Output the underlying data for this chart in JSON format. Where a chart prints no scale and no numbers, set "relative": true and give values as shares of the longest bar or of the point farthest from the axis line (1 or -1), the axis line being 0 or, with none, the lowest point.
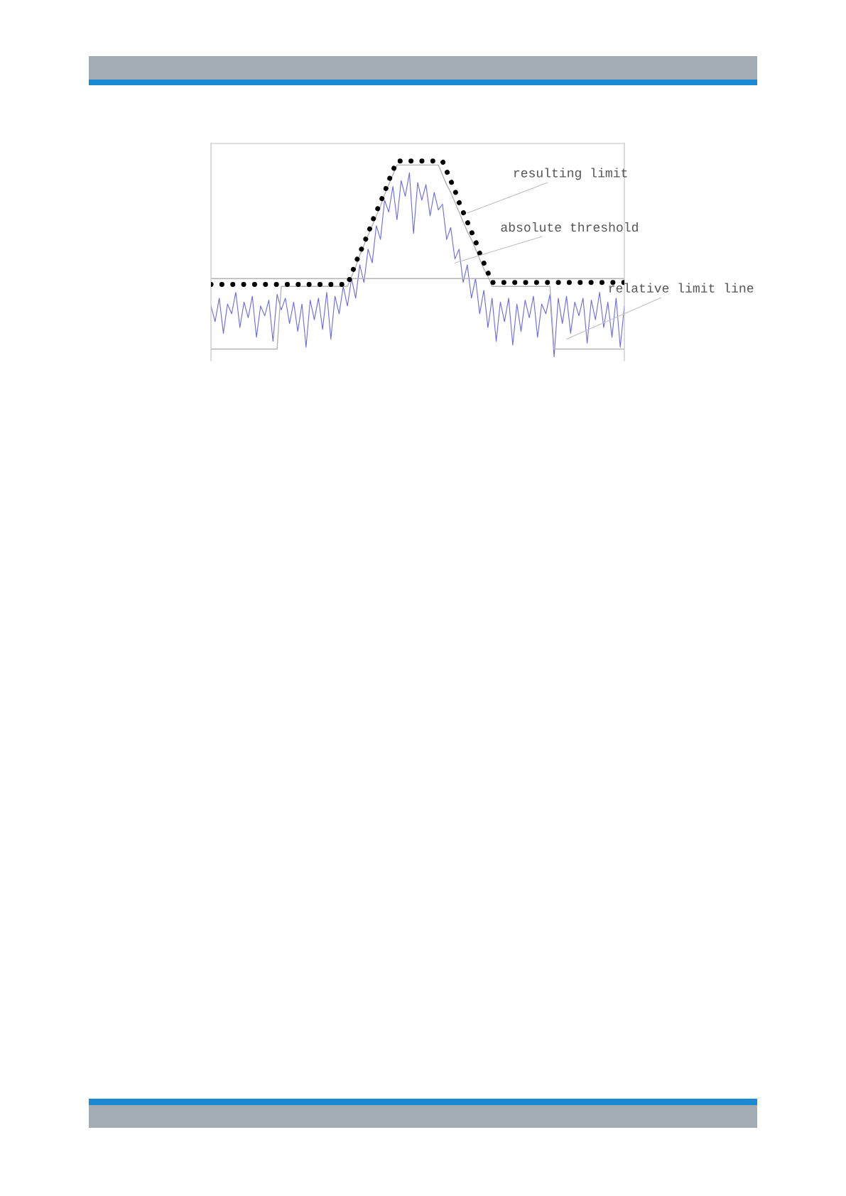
{
  "chart_data": {
    "type": "line",
    "relative": true,
    "categories": [
      null,
      null,
      null,
      null,
      null,
      null,
      null,
      null,
      null,
      null,
      null,
      null,
      null,
      null,
      null,
      null,
      null,
      null,
      null,
      null,
      null,
      null,
      null,
      null,
      null,
      null,
      null,
      null,
      null,
      null,
      null,
      null,
      null,
      null,
      null,
      null,
      null,
      null,
      null,
      null,
      null,
      null,
      null,
      null,
      null,
      null,
      null,
      null,
      null,
      null,
      null,
      null,
      null,
      null,
      null,
      null,
      null,
      null,
      null,
      null,
      null,
      null,
      null,
      null,
      null,
      null,
      null,
      null,
      null,
      null,
      null,
      null,
      null,
      null,
      null,
      null,
      null,
      null,
      null,
      null,
      null,
      null,
      null,
      null,
      null,
      null,
      null,
      null,
      null,
      null,
      null,
      null,
      null,
      null,
      null,
      null,
      null,
      null,
      null,
      null,
      null
    ],
    "series": [
      {
        "color": "#6a6ae8",
        "line_style": "solid",
        "values": [
          0.26,
          0.18,
          0.3,
          0.12,
          0.27,
          0.22,
          0.33,
          0.15,
          0.28,
          0.2,
          0.31,
          0.1,
          0.26,
          0.21,
          0.29,
          0.08,
          0.32,
          0.24,
          0.3,
          0.17,
          0.28,
          0.13,
          0.27,
          0.05,
          0.29,
          0.19,
          0.3,
          0.14,
          0.33,
          0.09,
          0.31,
          0.22,
          0.36,
          0.26,
          0.4,
          0.3,
          0.47,
          0.38,
          0.55,
          0.48,
          0.67,
          0.6,
          0.8,
          0.74,
          0.87,
          0.7,
          0.9,
          0.82,
          0.94,
          0.63,
          0.89,
          0.8,
          0.88,
          0.72,
          0.84,
          0.75,
          0.78,
          0.6,
          0.66,
          0.5,
          0.55,
          0.38,
          0.47,
          0.3,
          0.4,
          0.22,
          0.34,
          0.15,
          0.3,
          0.08,
          0.28,
          0.18,
          0.3,
          0.06,
          0.27,
          0.13,
          0.29,
          0.2,
          0.31,
          0.1,
          0.27,
          0.22,
          0.32,
          0.0,
          0.3,
          0.17,
          0.31,
          0.12,
          0.28,
          0.21,
          0.3,
          0.07,
          0.29,
          0.19,
          0.33,
          0.15,
          0.28,
          0.1,
          0.3,
          0.05,
          0.26
        ]
      },
      {
        "color": "#b4b4b4",
        "line_style": "solid",
        "values": [
          0.4,
          0.4,
          0.4,
          0.4,
          0.4,
          0.4,
          0.4,
          0.4,
          0.4,
          0.4,
          0.4,
          0.4,
          0.4,
          0.4,
          0.4,
          0.4,
          0.4,
          0.4,
          0.4,
          0.4,
          0.4,
          0.4,
          0.4,
          0.4,
          0.4,
          0.4,
          0.4,
          0.4,
          0.4,
          0.4,
          0.4,
          0.4,
          0.4,
          0.4,
          0.4,
          0.4,
          0.4,
          0.4,
          0.4,
          0.4,
          0.4,
          0.4,
          0.4,
          0.4,
          0.4,
          0.4,
          0.4,
          0.4,
          0.4,
          0.4,
          0.4,
          0.4,
          0.4,
          0.4,
          0.4,
          0.4,
          0.4,
          0.4,
          0.4,
          0.4,
          0.4,
          0.4,
          0.4,
          0.4,
          0.4,
          0.4,
          0.4,
          0.4,
          0.4,
          0.4,
          0.4,
          0.4,
          0.4,
          0.4,
          0.4,
          0.4,
          0.4,
          0.4,
          0.4,
          0.4,
          0.4,
          0.4,
          0.4,
          0.4,
          0.4,
          0.4,
          0.4,
          0.4,
          0.4,
          0.4,
          0.4,
          0.4,
          0.4,
          0.4,
          0.4,
          0.4,
          0.4,
          0.4,
          0.4,
          0.4,
          0.4
        ]
      },
      {
        "color": "#b4b4b4",
        "line_style": "solid",
        "values": [
          0.04,
          0.04,
          0.04,
          0.04,
          0.04,
          0.04,
          0.04,
          0.04,
          0.04,
          0.04,
          0.04,
          0.04,
          0.04,
          0.04,
          0.04,
          0.04,
          0.04,
          0.36,
          0.36,
          0.36,
          0.36,
          0.36,
          0.36,
          0.36,
          0.36,
          0.36,
          0.36,
          0.36,
          0.36,
          0.36,
          0.36,
          0.36,
          0.36,
          0.36,
          0.41,
          0.46,
          0.52,
          0.57,
          0.62,
          0.67,
          0.72,
          0.77,
          0.83,
          0.88,
          0.93,
          0.98,
          0.98,
          0.98,
          0.98,
          0.98,
          0.98,
          0.98,
          0.98,
          0.98,
          0.98,
          0.98,
          0.93,
          0.88,
          0.84,
          0.79,
          0.74,
          0.69,
          0.64,
          0.6,
          0.55,
          0.5,
          0.45,
          0.41,
          0.36,
          0.36,
          0.36,
          0.36,
          0.36,
          0.36,
          0.36,
          0.36,
          0.36,
          0.36,
          0.36,
          0.36,
          0.36,
          0.36,
          0.36,
          0.04,
          0.04,
          0.04,
          0.04,
          0.04,
          0.04,
          0.04,
          0.04,
          0.04,
          0.04,
          0.04,
          0.04,
          0.04,
          0.04,
          0.04,
          0.04,
          0.04,
          0.04
        ]
      },
      {
        "color": "#000000",
        "line_style": "dotted",
        "values": [
          0.37,
          0.37,
          0.37,
          0.37,
          0.37,
          0.37,
          0.37,
          0.37,
          0.37,
          0.37,
          0.37,
          0.37,
          0.37,
          0.37,
          0.37,
          0.37,
          0.37,
          0.37,
          0.37,
          0.37,
          0.37,
          0.37,
          0.37,
          0.37,
          0.37,
          0.37,
          0.37,
          0.37,
          0.37,
          0.37,
          0.37,
          0.37,
          0.37,
          0.37,
          0.42,
          0.48,
          0.53,
          0.58,
          0.63,
          0.69,
          0.74,
          0.79,
          0.84,
          0.9,
          0.95,
          1.0,
          1.0,
          1.0,
          1.0,
          1.0,
          1.0,
          1.0,
          1.0,
          1.0,
          1.0,
          1.0,
          1.0,
          0.95,
          0.9,
          0.85,
          0.79,
          0.74,
          0.69,
          0.64,
          0.59,
          0.53,
          0.48,
          0.43,
          0.38,
          0.38,
          0.38,
          0.38,
          0.38,
          0.38,
          0.38,
          0.38,
          0.38,
          0.38,
          0.38,
          0.38,
          0.38,
          0.38,
          0.38,
          0.38,
          0.38,
          0.38,
          0.38,
          0.38,
          0.38,
          0.38,
          0.38,
          0.38,
          0.38,
          0.38,
          0.38,
          0.38,
          0.38,
          0.38,
          0.38,
          0.38,
          0.38
        ]
      }
    ],
    "annotations": [
      "resulting limit",
      "absolute threshold",
      "relative limit line"
    ]
  }
}
